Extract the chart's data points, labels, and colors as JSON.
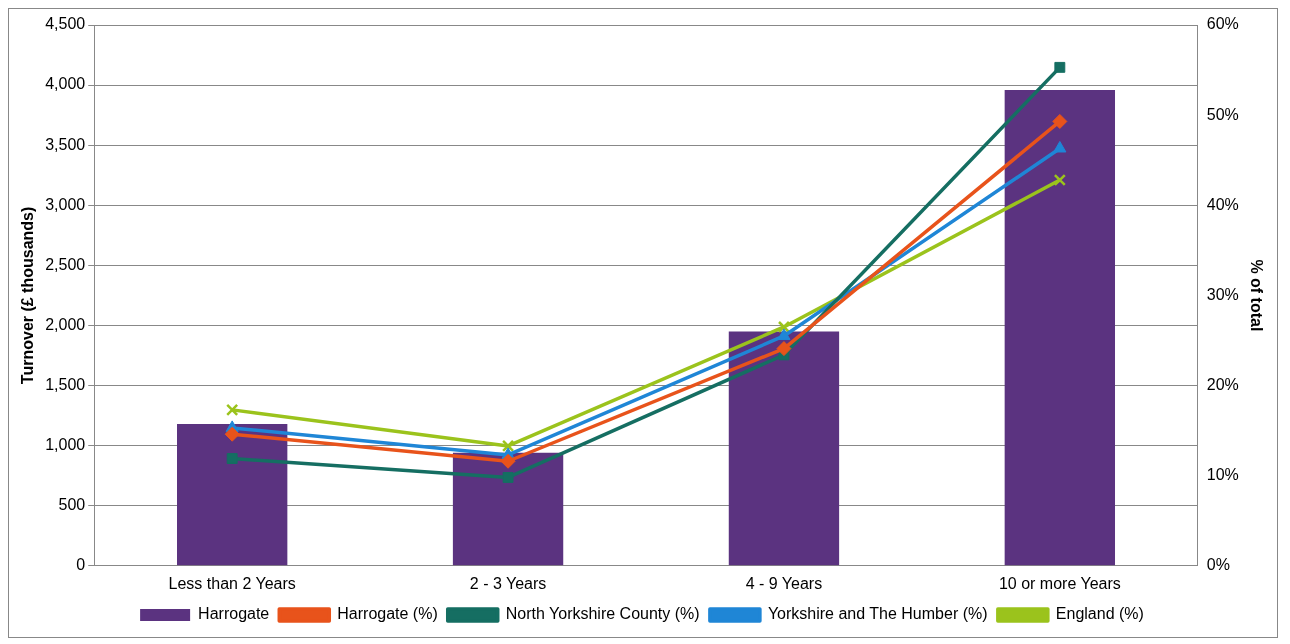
{
  "chart_data": {
    "type": "bar",
    "categories": [
      "Less than 2 Years",
      "2 - 3 Years",
      "4 - 9 Years",
      "10 or more Years"
    ],
    "ylabel": "Turnover (£ thousands)",
    "y2label": "% of total",
    "series": [
      {
        "name": "Harrogate",
        "color": "#5b3380",
        "values": [
          1180,
          940,
          1950,
          3960
        ]
      },
      {
        "name": "Harrogate (%)",
        "type": "line",
        "axis": "y2",
        "marker": "diamond",
        "color": "#e8531b",
        "values": [
          14.6,
          11.6,
          24.1,
          49.3
        ]
      },
      {
        "name": "North Yorkshire County (%)",
        "type": "line",
        "axis": "y2",
        "marker": "square",
        "color": "#156e62",
        "values": [
          11.9,
          9.8,
          23.4,
          55.3
        ]
      },
      {
        "name": "Yorkshire and The Humber (%)",
        "type": "line",
        "axis": "y2",
        "marker": "triangle",
        "color": "#1f86d6",
        "values": [
          15.3,
          12.3,
          25.5,
          46.3
        ]
      },
      {
        "name": "England (%)",
        "type": "line",
        "axis": "y2",
        "marker": "cross",
        "color": "#9bc31c",
        "values": [
          17.3,
          13.3,
          26.5,
          42.8
        ]
      }
    ],
    "ylim": [
      0,
      4500
    ],
    "yticks": [
      0,
      500,
      {
        "value": 1000,
        "label": "1,000"
      },
      {
        "value": 1500,
        "label": "1,500"
      },
      {
        "value": 2000,
        "label": "2,000"
      },
      {
        "value": 2500,
        "label": "2,500"
      },
      {
        "value": 3000,
        "label": "3,000"
      },
      {
        "value": 3500,
        "label": "3,500"
      },
      {
        "value": 4000,
        "label": "4,000"
      },
      {
        "value": 4500,
        "label": "4,500"
      }
    ],
    "y2lim": [
      0,
      60
    ],
    "y2ticks": [
      {
        "value": 0,
        "label": "0%"
      },
      {
        "value": 10,
        "label": "10%"
      },
      {
        "value": 20,
        "label": "20%"
      },
      {
        "value": 30,
        "label": "30%"
      },
      {
        "value": 40,
        "label": "40%"
      },
      {
        "value": 50,
        "label": "50%"
      },
      {
        "value": 60,
        "label": "60%"
      }
    ],
    "grid": "y",
    "legend": "bottom"
  }
}
